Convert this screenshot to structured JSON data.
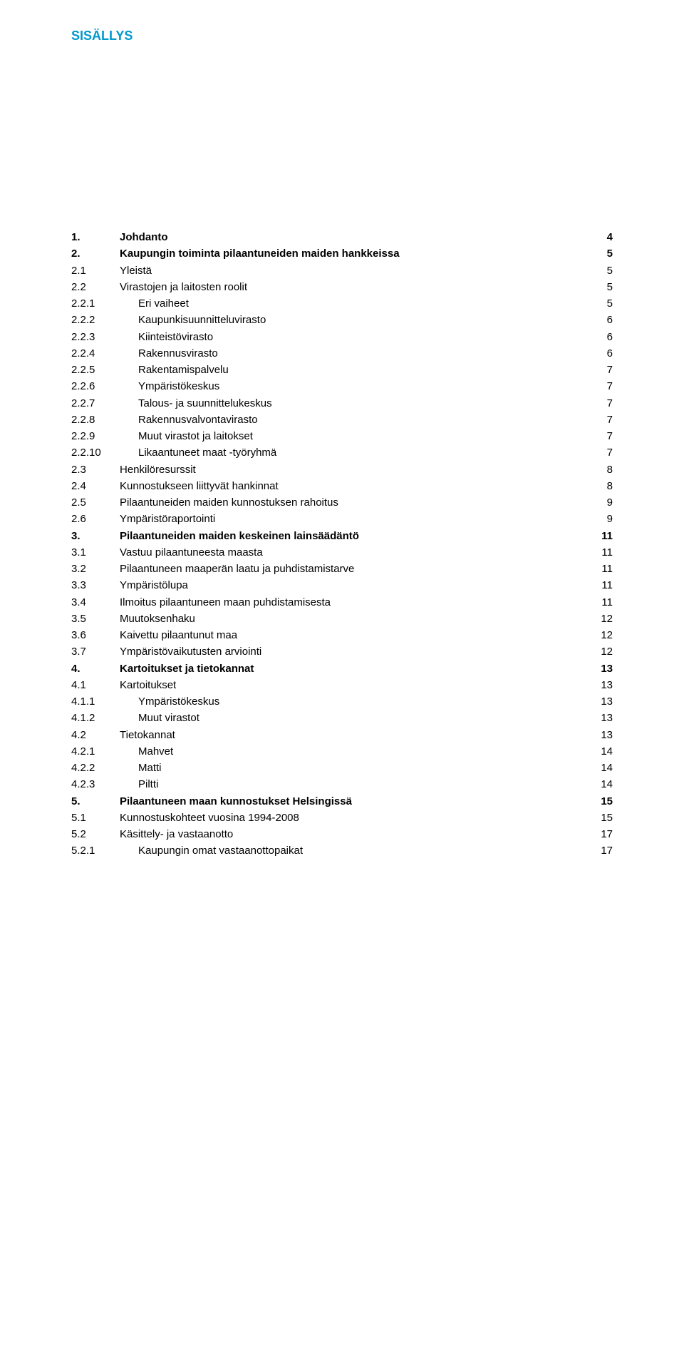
{
  "title": "SISÄLLYS",
  "colors": {
    "title_color": "#0099cc",
    "text_color": "#000000",
    "background": "#ffffff"
  },
  "typography": {
    "font_family": "Verdana, Geneva, sans-serif",
    "title_fontsize_pt": 14,
    "body_fontsize_pt": 11,
    "line_height": 1.55
  },
  "toc": [
    {
      "num": "1.",
      "title": "Johdanto",
      "page": "4",
      "level": 1
    },
    {
      "num": "2.",
      "title": "Kaupungin toiminta pilaantuneiden maiden hankkeissa",
      "page": "5",
      "level": 1
    },
    {
      "num": "2.1",
      "title": "Yleistä",
      "page": "5",
      "level": 2
    },
    {
      "num": "2.2",
      "title": "Virastojen ja laitosten roolit",
      "page": "5",
      "level": 2
    },
    {
      "num": "2.2.1",
      "title": "Eri vaiheet",
      "page": "5",
      "level": 3
    },
    {
      "num": "2.2.2",
      "title": "Kaupunkisuunnitteluvirasto",
      "page": "6",
      "level": 3
    },
    {
      "num": "2.2.3",
      "title": "Kiinteistövirasto",
      "page": "6",
      "level": 3
    },
    {
      "num": "2.2.4",
      "title": "Rakennusvirasto",
      "page": "6",
      "level": 3
    },
    {
      "num": "2.2.5",
      "title": "Rakentamispalvelu",
      "page": "7",
      "level": 3
    },
    {
      "num": "2.2.6",
      "title": "Ympäristökeskus",
      "page": "7",
      "level": 3
    },
    {
      "num": "2.2.7",
      "title": "Talous- ja suunnittelukeskus",
      "page": "7",
      "level": 3
    },
    {
      "num": "2.2.8",
      "title": "Rakennusvalvontavirasto",
      "page": "7",
      "level": 3
    },
    {
      "num": "2.2.9",
      "title": "Muut virastot ja laitokset",
      "page": "7",
      "level": 3
    },
    {
      "num": "2.2.10",
      "title": "Likaantuneet maat -työryhmä",
      "page": "7",
      "level": 3
    },
    {
      "num": "2.3",
      "title": "Henkilöresurssit",
      "page": "8",
      "level": 2
    },
    {
      "num": "2.4",
      "title": "Kunnostukseen liittyvät hankinnat",
      "page": "8",
      "level": 2
    },
    {
      "num": "2.5",
      "title": "Pilaantuneiden maiden kunnostuksen rahoitus",
      "page": "9",
      "level": 2
    },
    {
      "num": "2.6",
      "title": "Ympäristöraportointi",
      "page": "9",
      "level": 2
    },
    {
      "num": "3.",
      "title": "Pilaantuneiden maiden keskeinen lainsäädäntö",
      "page": "11",
      "level": 1
    },
    {
      "num": "3.1",
      "title": "Vastuu pilaantuneesta maasta",
      "page": "11",
      "level": 2
    },
    {
      "num": "3.2",
      "title": "Pilaantuneen maaperän laatu ja puhdistamistarve",
      "page": "11",
      "level": 2
    },
    {
      "num": "3.3",
      "title": "Ympäristölupa",
      "page": "11",
      "level": 2
    },
    {
      "num": "3.4",
      "title": "Ilmoitus pilaantuneen maan puhdistamisesta",
      "page": "11",
      "level": 2
    },
    {
      "num": "3.5",
      "title": "Muutoksenhaku",
      "page": "12",
      "level": 2
    },
    {
      "num": "3.6",
      "title": "Kaivettu pilaantunut maa",
      "page": "12",
      "level": 2
    },
    {
      "num": "3.7",
      "title": "Ympäristövaikutusten arviointi",
      "page": "12",
      "level": 2
    },
    {
      "num": "4.",
      "title": "Kartoitukset ja tietokannat",
      "page": "13",
      "level": 1
    },
    {
      "num": "4.1",
      "title": "Kartoitukset",
      "page": "13",
      "level": 2
    },
    {
      "num": "4.1.1",
      "title": "Ympäristökeskus",
      "page": "13",
      "level": 3
    },
    {
      "num": "4.1.2",
      "title": "Muut virastot",
      "page": "13",
      "level": 3
    },
    {
      "num": "4.2",
      "title": "Tietokannat",
      "page": "13",
      "level": 2
    },
    {
      "num": "4.2.1",
      "title": "Mahvet",
      "page": "14",
      "level": 3
    },
    {
      "num": "4.2.2",
      "title": "Matti",
      "page": "14",
      "level": 3
    },
    {
      "num": "4.2.3",
      "title": "Piltti",
      "page": "14",
      "level": 3
    },
    {
      "num": "5.",
      "title": "Pilaantuneen maan kunnostukset Helsingissä",
      "page": "15",
      "level": 1
    },
    {
      "num": "5.1",
      "title": "Kunnostuskohteet vuosina 1994-2008",
      "page": "15",
      "level": 2
    },
    {
      "num": "5.2",
      "title": "Käsittely- ja vastaanotto",
      "page": "17",
      "level": 2
    },
    {
      "num": "5.2.1",
      "title": "Kaupungin omat vastaanottopaikat",
      "page": "17",
      "level": 3
    }
  ]
}
